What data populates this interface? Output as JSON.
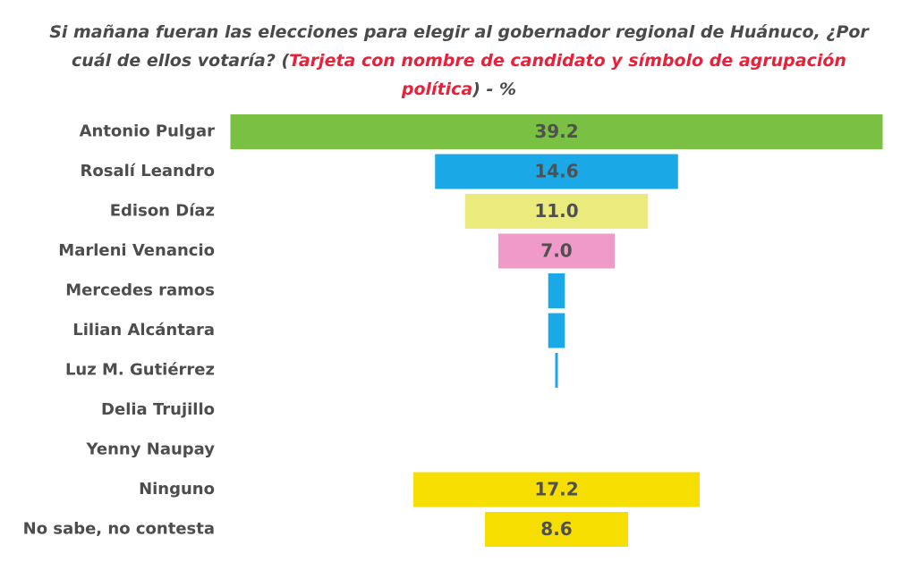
{
  "chart_data": {
    "type": "bar",
    "orientation": "horizontal-funnel",
    "title": {
      "part1": "Si mañana fueran las elecciones para elegir al gobernador regional de Huánuco, ¿Por cuál de ellos votaría? (",
      "highlight": "Tarjeta con nombre de candidato y símbolo de agrupación política",
      "part2": ") - %"
    },
    "categories": [
      "Antonio Pulgar",
      "Rosalí Leandro",
      "Edison Díaz",
      "Marleni Venancio",
      "Mercedes ramos",
      "Lilian Alcántara",
      "Luz M. Gutiérrez",
      "Delia Trujillo",
      "Yenny Naupay",
      "Ninguno",
      "No sabe, no contesta"
    ],
    "values": [
      39.2,
      14.6,
      11.0,
      7.0,
      1.0,
      1.0,
      0.1,
      0,
      0,
      17.2,
      8.6
    ],
    "value_labels": [
      "39.2",
      "14.6",
      "11.0",
      "7.0",
      "",
      "",
      "",
      "",
      "",
      "17.2",
      "8.6"
    ],
    "colors": [
      "#7ac143",
      "#1aa9e6",
      "#ebeb7d",
      "#ef9ac9",
      "#1aa9e6",
      "#1aa9e6",
      "#1aa9e6",
      "#1aa9e6",
      "#1aa9e6",
      "#f6df00",
      "#f6df00"
    ],
    "xlim": [
      0,
      39.2
    ],
    "unit": "%"
  }
}
